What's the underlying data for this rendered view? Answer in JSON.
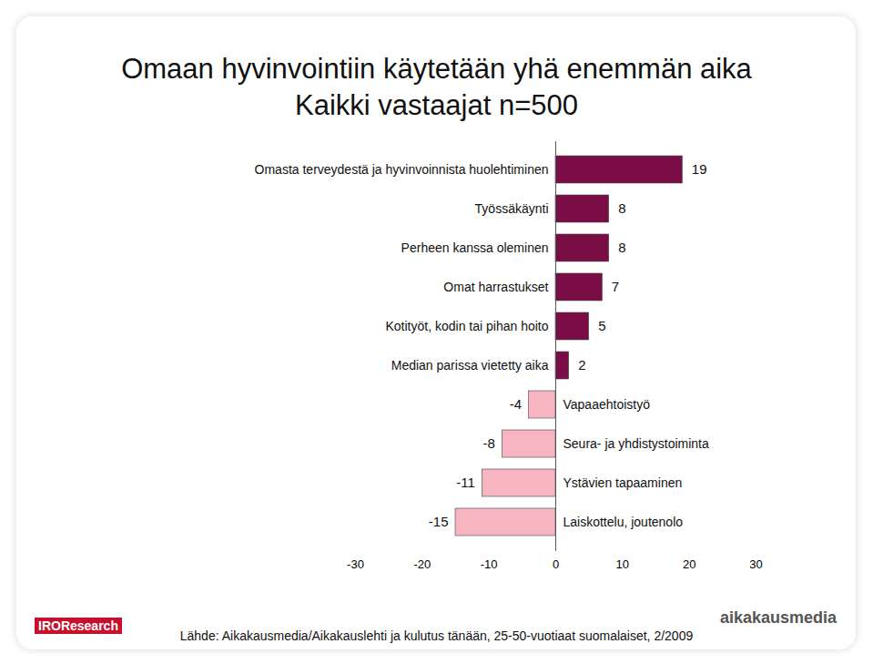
{
  "chart_data": {
    "type": "bar",
    "orientation": "horizontal",
    "title": "Omaan hyvinvointiin käytetään yhä enemmän aika",
    "subtitle": "Kaikki vastaajat n=500",
    "source": "Lähde: Aikakausmedia/Aikakauslehti ja kulutus tänään, 25-50-vuotiaat suomalaiset, 2/2009",
    "logos": [
      "IROResearch",
      "aikakausmedia"
    ],
    "categories": [
      "Omasta terveydestä ja hyvinvoinnista huolehtiminen",
      "Työssäkäynti",
      "Perheen kanssa oleminen",
      "Omat harrastukset",
      "Kotityöt, kodin tai pihan hoito",
      "Median parissa vietetty aika",
      "Vapaaehtoistyö",
      "Seura- ja yhdistystoiminta",
      "Ystävien tapaaminen",
      "Laiskottelu, joutenolo"
    ],
    "values": [
      19,
      8,
      8,
      7,
      5,
      2,
      -4,
      -8,
      -11,
      -15
    ],
    "colors": [
      "#7a0d45",
      "#7a0d45",
      "#7a0d45",
      "#7a0d45",
      "#7a0d45",
      "#7a0d45",
      "#f7b5c2",
      "#f7b5c2",
      "#f7b5c2",
      "#f7b5c2"
    ],
    "xlim": [
      -30,
      30
    ],
    "xticks": [
      -30,
      -20,
      -10,
      0,
      10,
      20,
      30
    ],
    "grid": false,
    "data_labels": true
  }
}
